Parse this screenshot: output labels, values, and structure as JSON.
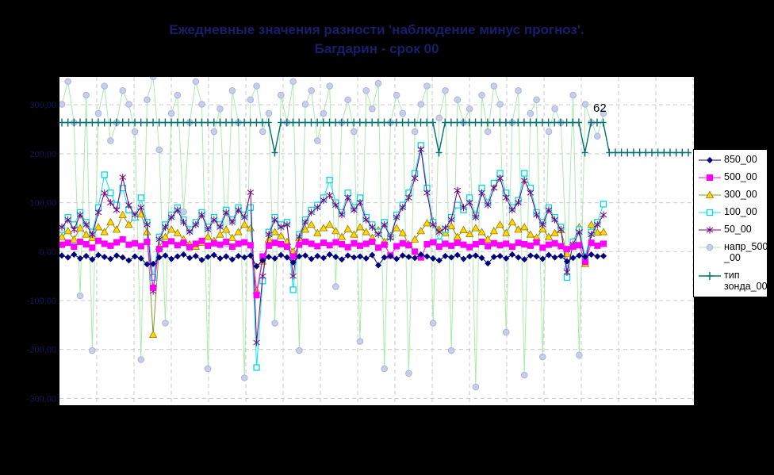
{
  "window": {
    "bg_color": "#000000",
    "plot_bg_color": "#FFFFFF"
  },
  "title": {
    "line1": "Ежедневные значения разности 'наблюдение минус прогноз'.",
    "line2": "Багдарин - срок 00",
    "color": "#1C1C6C"
  },
  "annotation": {
    "text": "62"
  },
  "chart_data": {
    "type": "line",
    "title": "Ежедневные значения разности 'наблюдение минус прогноз'. Багдарин - срок 00",
    "xlabel": "",
    "ylabel": "",
    "x_labels_visible": false,
    "grid": {
      "h_dashed": true,
      "v_dashed": true,
      "color": "#C9C9C9"
    },
    "axes": {
      "left": {
        "min": -314,
        "max": 357,
        "ticks": [
          300,
          200,
          100,
          0,
          -100,
          -200,
          -300
        ],
        "tick_labels": [
          "300,00",
          "200,00",
          "100,00",
          "0,00",
          "-100,00",
          "-200,00",
          "-300,00"
        ],
        "label_color": "#15155A"
      },
      "right": {
        "min": 0,
        "max": 360,
        "visible": false
      }
    },
    "legend": {
      "position": "right",
      "entries": [
        [
          "850_00"
        ],
        [
          "500_00"
        ],
        [
          "300_00"
        ],
        [
          "100_00"
        ],
        [
          "50_00"
        ],
        [
          "напр_500",
          "_00"
        ],
        [
          "тип",
          "зонда_00"
        ]
      ]
    },
    "series": [
      {
        "name": "850_00",
        "axis": "left",
        "line_color": "#00007E",
        "marker": "diamond",
        "marker_fill": "#00007E",
        "marker_stroke": "#00007E",
        "line_width": 1,
        "values": [
          -8,
          -12,
          -6,
          -14,
          -9,
          -16,
          -7,
          -11,
          -15,
          -8,
          -12,
          -18,
          -10,
          -14,
          -26,
          -25,
          -12,
          -8,
          -15,
          -10,
          -6,
          -13,
          -9,
          -17,
          -11,
          -7,
          -14,
          -10,
          -16,
          -9,
          -12,
          -8,
          -30,
          -18,
          -11,
          -14,
          -7,
          -12,
          -22,
          -10,
          -8,
          -15,
          -9,
          -13,
          -6,
          -11,
          -16,
          -8,
          -12,
          -10,
          -14,
          -7,
          -28,
          -12,
          -9,
          -15,
          -8,
          -11,
          -13,
          -6,
          -10,
          -14,
          -18,
          -9,
          -12,
          -7,
          -15,
          -10,
          -8,
          -13,
          -24,
          -11,
          -9,
          -14,
          -6,
          -12,
          -16,
          -8,
          -10,
          -15,
          -7,
          -12,
          -9,
          -20,
          -13,
          -8,
          -11,
          -6,
          -10,
          -9
        ]
      },
      {
        "name": "500_00",
        "axis": "left",
        "line_color": "#FF00FF",
        "marker": "square",
        "marker_fill": "#FF00FF",
        "marker_stroke": "#FF00FF",
        "line_width": 1,
        "values": [
          14,
          18,
          10,
          20,
          15,
          8,
          22,
          16,
          12,
          19,
          25,
          14,
          17,
          11,
          20,
          -74,
          5,
          15,
          21,
          13,
          18,
          9,
          16,
          22,
          12,
          17,
          14,
          20,
          10,
          16,
          19,
          13,
          -89,
          -10,
          12,
          18,
          15,
          10,
          -10,
          14,
          20,
          16,
          11,
          18,
          13,
          19,
          15,
          9,
          17,
          12,
          16,
          20,
          8,
          14,
          -8,
          11,
          17,
          13,
          0,
          -12,
          15,
          19,
          10,
          16,
          12,
          18,
          14,
          9,
          15,
          20,
          11,
          17,
          13,
          16,
          10,
          18,
          15,
          12,
          19,
          8,
          14,
          17,
          11,
          5,
          10,
          13,
          -21,
          18,
          12,
          16
        ]
      },
      {
        "name": "300_00",
        "axis": "left",
        "line_color": "#7D9B26",
        "marker": "triangle",
        "marker_fill": "#FFD800",
        "marker_stroke": "#A07800",
        "line_width": 1,
        "values": [
          30,
          42,
          25,
          48,
          35,
          28,
          50,
          40,
          60,
          45,
          75,
          55,
          70,
          76,
          40,
          -170,
          10,
          30,
          45,
          38,
          25,
          15,
          10,
          18,
          30,
          22,
          35,
          45,
          28,
          40,
          55,
          48,
          -80,
          -20,
          25,
          40,
          32,
          20,
          0,
          28,
          45,
          55,
          38,
          48,
          55,
          42,
          30,
          46,
          35,
          50,
          40,
          28,
          44,
          20,
          32,
          48,
          38,
          15,
          25,
          42,
          58,
          62,
          45,
          38,
          52,
          30,
          44,
          36,
          48,
          40,
          25,
          42,
          55,
          38,
          60,
          45,
          50,
          35,
          28,
          46,
          30,
          38,
          44,
          -5,
          20,
          50,
          -25,
          55,
          39,
          40
        ]
      },
      {
        "name": "100_00",
        "axis": "left",
        "line_color": "#00E8F0",
        "marker": "open-square",
        "marker_fill": "#FFFFFF",
        "marker_stroke": "#00D8E8",
        "line_width": 1,
        "values": [
          45,
          70,
          55,
          80,
          60,
          40,
          90,
          157,
          120,
          95,
          130,
          85,
          70,
          110,
          60,
          -53,
          30,
          55,
          75,
          90,
          65,
          45,
          60,
          80,
          50,
          70,
          55,
          85,
          65,
          90,
          75,
          90,
          -237,
          -60,
          40,
          70,
          55,
          60,
          -78,
          35,
          65,
          85,
          95,
          110,
          146,
          100,
          80,
          120,
          90,
          110,
          70,
          55,
          40,
          60,
          30,
          75,
          95,
          120,
          160,
          217,
          130,
          60,
          20,
          45,
          70,
          95,
          85,
          110,
          75,
          130,
          100,
          140,
          160,
          120,
          90,
          105,
          160,
          130,
          80,
          60,
          90,
          70,
          50,
          -53,
          20,
          45,
          -10,
          40,
          60,
          97
        ]
      },
      {
        "name": "50_00",
        "axis": "left",
        "line_color": "#7B007B",
        "marker": "asterisk",
        "marker_fill": "none",
        "marker_stroke": "#7B007B",
        "line_width": 1,
        "values": [
          50,
          65,
          45,
          75,
          55,
          35,
          80,
          120,
          100,
          85,
          152,
          95,
          75,
          90,
          55,
          -81,
          25,
          50,
          70,
          85,
          60,
          40,
          55,
          75,
          45,
          65,
          50,
          80,
          60,
          85,
          70,
          121,
          -186,
          -50,
          35,
          65,
          50,
          55,
          -50,
          30,
          60,
          80,
          90,
          105,
          115,
          95,
          75,
          110,
          85,
          100,
          65,
          50,
          35,
          55,
          28,
          70,
          90,
          110,
          150,
          209,
          120,
          55,
          40,
          48,
          65,
          125,
          90,
          100,
          70,
          120,
          95,
          130,
          150,
          110,
          85,
          100,
          145,
          120,
          75,
          55,
          85,
          65,
          45,
          -42,
          15,
          40,
          -20,
          35,
          55,
          75
        ]
      },
      {
        "name": "напр_500_00",
        "axis": "right",
        "line_color": "#ACE9AC",
        "marker": "circle",
        "marker_fill": "#C8CEEA",
        "marker_stroke": "#ABB4D8",
        "line_width": 1,
        "values": [
          330,
          355,
          310,
          120,
          340,
          60,
          320,
          350,
          290,
          310,
          345,
          330,
          300,
          50,
          335,
          360,
          280,
          90,
          320,
          340,
          212,
          310,
          355,
          330,
          40,
          300,
          325,
          177,
          345,
          310,
          30,
          335,
          350,
          300,
          320,
          90,
          340,
          310,
          355,
          60,
          330,
          345,
          290,
          320,
          350,
          130,
          310,
          335,
          300,
          70,
          345,
          325,
          353,
          40,
          310,
          340,
          320,
          35,
          300,
          330,
          350,
          90,
          315,
          345,
          60,
          335,
          310,
          325,
          20,
          340,
          300,
          350,
          330,
          80,
          310,
          345,
          33,
          320,
          335,
          53,
          300,
          325,
          310,
          150,
          340,
          55,
          330,
          310,
          295,
          320
        ]
      },
      {
        "name": "тип зонда_00",
        "axis": "right",
        "line_color": "#007272",
        "marker": "plus",
        "marker_fill": "none",
        "marker_stroke": "#007272",
        "line_width": 1.4,
        "extends_full_width": true,
        "values": [
          310,
          310,
          310,
          310,
          310,
          310,
          310,
          310,
          310,
          310,
          310,
          310,
          310,
          310,
          310,
          310,
          310,
          310,
          310,
          310,
          310,
          310,
          310,
          310,
          310,
          310,
          310,
          310,
          310,
          310,
          310,
          310,
          310,
          310,
          310,
          277,
          310,
          310,
          310,
          310,
          310,
          310,
          310,
          310,
          310,
          310,
          310,
          310,
          310,
          310,
          310,
          310,
          310,
          310,
          310,
          310,
          310,
          310,
          310,
          310,
          310,
          310,
          277,
          310,
          310,
          310,
          310,
          310,
          310,
          310,
          310,
          310,
          310,
          310,
          310,
          310,
          310,
          310,
          310,
          310,
          310,
          310,
          310,
          310,
          310,
          310,
          277,
          310,
          310,
          310,
          277,
          277,
          277,
          277,
          277,
          277,
          277,
          277,
          277,
          277,
          277,
          277,
          277,
          277
        ]
      }
    ]
  }
}
